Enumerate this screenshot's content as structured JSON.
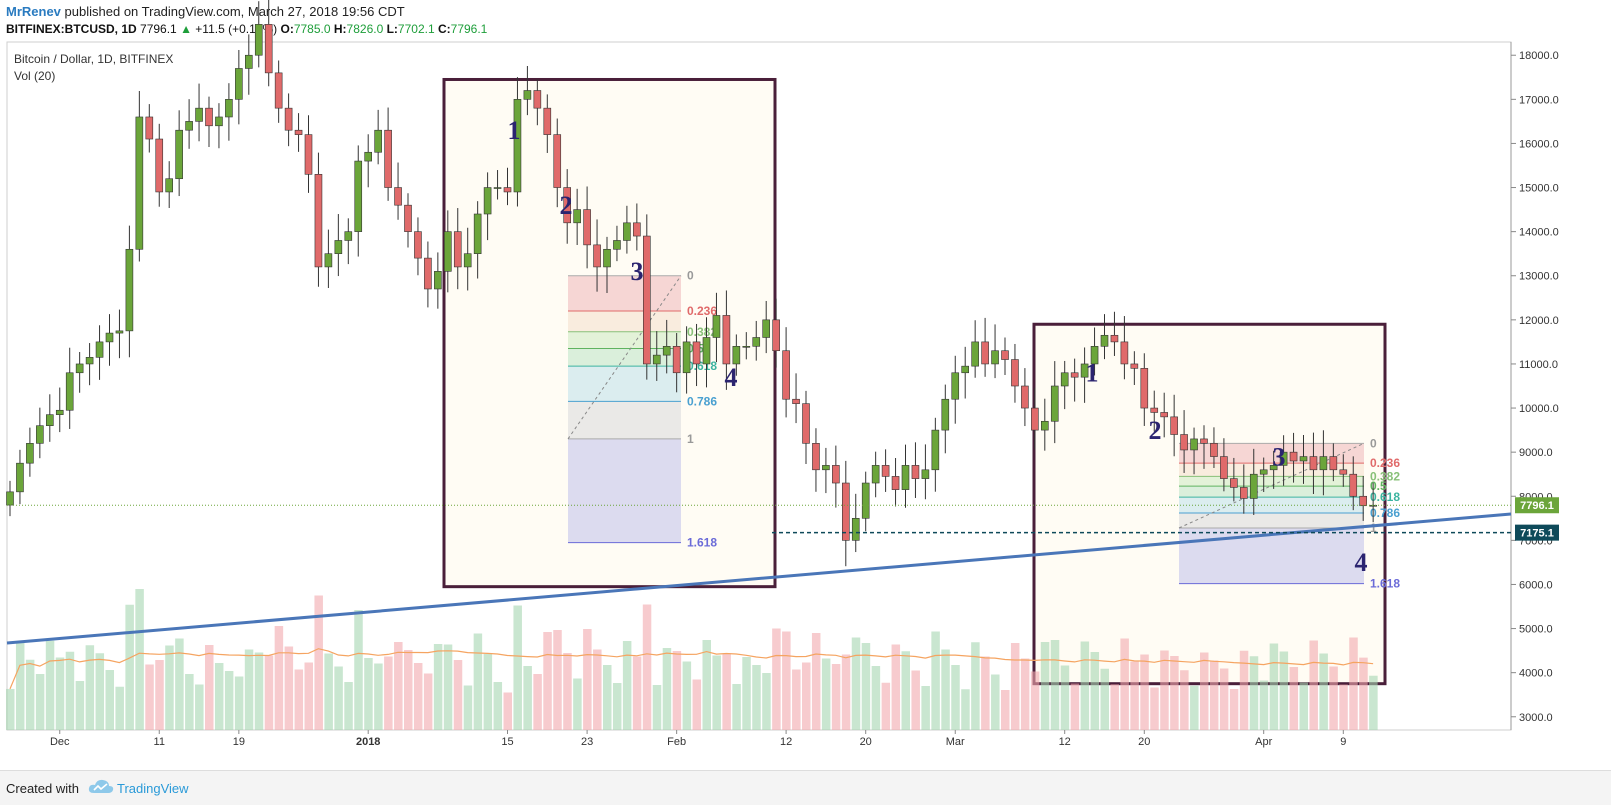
{
  "header": {
    "author": "MrRenev",
    "published": "published on TradingView.com, March 27, 2018 19:56 CDT",
    "symbol": "BITFINEX:BTCUSD, 1D",
    "last": "7796.1",
    "change": "+11.5 (+0.15%)",
    "o_label": "O:",
    "o_value": "7785.0",
    "h_label": "H:",
    "h_value": "7826.0",
    "l_label": "L:",
    "l_value": "7702.1",
    "c_label": "C:",
    "c_value": "7796.1"
  },
  "legend": {
    "title": "Bitcoin / Dollar, 1D, BITFINEX",
    "volume": "Vol (20)"
  },
  "footer": {
    "created": "Created with",
    "brand": "TradingView"
  },
  "colors": {
    "up": "#6ba53a",
    "down": "#e06a6a",
    "trendline": "#4a76b8",
    "box": "#4a1f3a",
    "price_tag": "#6ba53a",
    "level_tag": "#0e4a5a"
  },
  "chart_data": {
    "type": "candlestick",
    "title": "Bitcoin / Dollar, 1D, BITFINEX",
    "y_ticks": [
      "18000.0",
      "17000.0",
      "16000.0",
      "15000.0",
      "14000.0",
      "13000.0",
      "12000.0",
      "11000.0",
      "10000.0",
      "9000.0",
      "8000.0",
      "7000.0",
      "6000.0",
      "5000.0",
      "4000.0",
      "3000.0"
    ],
    "y_tick_values": [
      18000,
      17000,
      16000,
      15000,
      14000,
      13000,
      12000,
      11000,
      10000,
      9000,
      8000,
      7000,
      6000,
      5000,
      4000,
      3000
    ],
    "x_ticks": [
      "Dec",
      "11",
      "19",
      "2018",
      "15",
      "23",
      "Feb",
      "12",
      "20",
      "Mar",
      "12",
      "20",
      "Apr",
      "9"
    ],
    "x_tick_dates": [
      "2017-12-01",
      "2017-12-11",
      "2017-12-19",
      "2018-01-01",
      "2018-01-15",
      "2018-01-23",
      "2018-02-01",
      "2018-02-12",
      "2018-02-20",
      "2018-03-01",
      "2018-03-12",
      "2018-03-20",
      "2018-04-01",
      "2018-04-09"
    ],
    "start_date": "2017-11-26",
    "price_min": 2700,
    "price_max": 18300,
    "closes": [
      8100,
      8750,
      9200,
      9600,
      9850,
      9950,
      10800,
      11000,
      11150,
      11500,
      11700,
      11750,
      13600,
      16600,
      16100,
      14900,
      15200,
      16300,
      16500,
      16800,
      16400,
      16600,
      17000,
      17700,
      18000,
      18700,
      17600,
      16800,
      16300,
      16200,
      15300,
      13200,
      13500,
      13800,
      14000,
      15600,
      15800,
      16300,
      15000,
      14600,
      14000,
      13400,
      12700,
      13100,
      14000,
      13200,
      13500,
      14400,
      15000,
      15000,
      14900,
      17000,
      17200,
      16800,
      16200,
      15000,
      14200,
      14500,
      13700,
      13200,
      13600,
      13800,
      14200,
      13900,
      11000,
      11200,
      11400,
      10800,
      11500,
      11000,
      11600,
      12100,
      11000,
      11400,
      11400,
      11600,
      12000,
      11300,
      10200,
      10100,
      9200,
      8600,
      8700,
      8300,
      7000,
      7500,
      8300,
      8700,
      8450,
      8150,
      8700,
      8400,
      8600,
      9500,
      10200,
      10800,
      10950,
      11500,
      11000,
      11300,
      11100,
      10500,
      10000,
      9500,
      9700,
      10500,
      10800,
      10700,
      11000,
      11400,
      11650,
      11500,
      11000,
      10900,
      10000,
      9900,
      9800,
      9400,
      9050,
      9300,
      9200,
      8900,
      8400,
      8200,
      7950,
      8500,
      8600,
      8700,
      9000,
      8800,
      8900,
      8600,
      8900,
      8600,
      8500,
      8000,
      7785,
      7796
    ],
    "volume_sample": "relative bar heights, scale not shown"
  },
  "annotations": {
    "box1_labels": [
      "1",
      "2",
      "3",
      "4"
    ],
    "box2_labels": [
      "1",
      "2",
      "3",
      "4"
    ],
    "fib_levels": [
      "0",
      "0.236",
      "0.382",
      "0.5",
      "0.618",
      "0.786",
      "1",
      "1.618"
    ],
    "fib1_prices": [
      13000,
      12200,
      11730,
      11350,
      10950,
      10150,
      9300,
      6950
    ],
    "fib2_prices": [
      9200,
      8750,
      8450,
      8230,
      7980,
      7620,
      7280,
      6020
    ],
    "price_tag": "7796.1",
    "level_tag": "7175.1",
    "current_price": 7796.1,
    "horizontal_level": 7175.1
  }
}
